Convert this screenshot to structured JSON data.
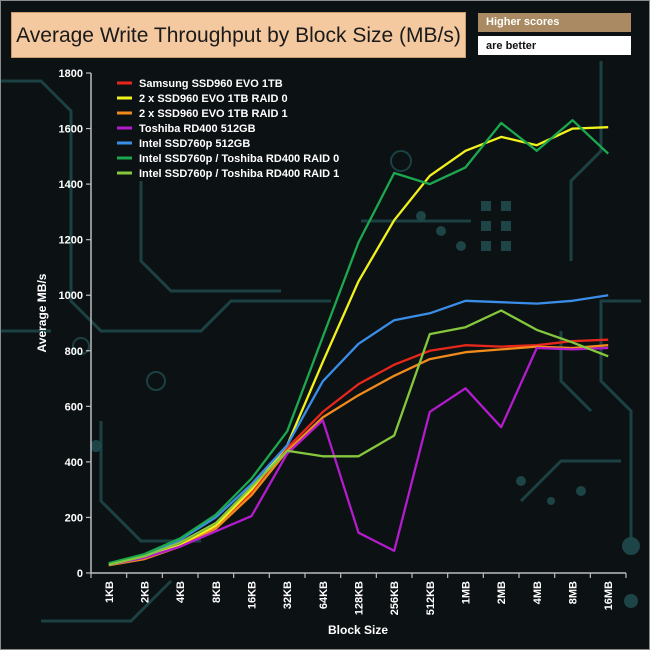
{
  "title": "Average Write Throughput by Block Size (MB/s)",
  "note": {
    "line1": "Higher scores",
    "line2": "are better"
  },
  "chart_data": {
    "type": "line",
    "title": "Average Write Throughput by Block Size (MB/s)",
    "xlabel": "Block Size",
    "ylabel": "Average MB/s",
    "ylim": [
      0,
      1800
    ],
    "yticks": [
      0,
      200,
      400,
      600,
      800,
      1000,
      1200,
      1400,
      1600,
      1800
    ],
    "categories": [
      "1KB",
      "2KB",
      "4KB",
      "8KB",
      "16KB",
      "32KB",
      "64KB",
      "128KB",
      "256KB",
      "512KB",
      "1MB",
      "2MB",
      "4MB",
      "8MB",
      "16MB"
    ],
    "legend_position": "top-left",
    "grid": false,
    "series": [
      {
        "name": "Samsung SSD960 EVO 1TB",
        "color": "#e8271c",
        "values": [
          30,
          55,
          100,
          165,
          290,
          450,
          580,
          680,
          750,
          800,
          820,
          815,
          820,
          835,
          840
        ]
      },
      {
        "name": "2 x SSD960 EVO 1TB RAID 0",
        "color": "#f2f21c",
        "values": [
          30,
          55,
          100,
          170,
          300,
          460,
          760,
          1050,
          1270,
          1430,
          1520,
          1570,
          1540,
          1600,
          1605
        ]
      },
      {
        "name": "2 x SSD960 EVO 1TB RAID 1",
        "color": "#f08a1c",
        "values": [
          28,
          50,
          95,
          160,
          280,
          440,
          560,
          640,
          710,
          770,
          795,
          805,
          815,
          810,
          820
        ]
      },
      {
        "name": "Toshiba RD400 512GB",
        "color": "#b21ccc",
        "values": [
          30,
          55,
          95,
          150,
          205,
          430,
          550,
          145,
          80,
          580,
          665,
          525,
          810,
          805,
          810
        ]
      },
      {
        "name": "Intel SSD760p 512GB",
        "color": "#3a8ee8",
        "values": [
          35,
          65,
          120,
          200,
          320,
          460,
          690,
          825,
          910,
          935,
          980,
          975,
          970,
          980,
          1000
        ]
      },
      {
        "name": "Intel SSD760p / Toshiba RD400 RAID 0",
        "color": "#1ca84e",
        "values": [
          35,
          68,
          125,
          210,
          340,
          510,
          850,
          1190,
          1440,
          1400,
          1460,
          1620,
          1520,
          1630,
          1510
        ]
      },
      {
        "name": "Intel SSD760p / Toshiba RD400 RAID 1",
        "color": "#86c83c",
        "values": [
          30,
          60,
          110,
          180,
          310,
          440,
          420,
          420,
          495,
          860,
          885,
          945,
          875,
          830,
          780
        ]
      }
    ]
  }
}
